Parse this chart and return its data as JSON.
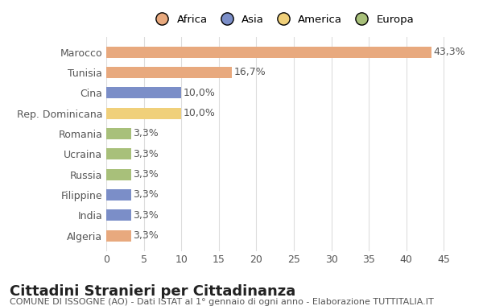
{
  "categories": [
    "Marocco",
    "Tunisia",
    "Cina",
    "Rep. Dominicana",
    "Romania",
    "Ucraina",
    "Russia",
    "Filippine",
    "India",
    "Algeria"
  ],
  "values": [
    43.3,
    16.7,
    10.0,
    10.0,
    3.3,
    3.3,
    3.3,
    3.3,
    3.3,
    3.3
  ],
  "labels": [
    "43,3%",
    "16,7%",
    "10,0%",
    "10,0%",
    "3,3%",
    "3,3%",
    "3,3%",
    "3,3%",
    "3,3%",
    "3,3%"
  ],
  "colors": [
    "#E8A97E",
    "#E8A97E",
    "#7B8EC8",
    "#F0D07A",
    "#A8C07A",
    "#A8C07A",
    "#A8C07A",
    "#7B8EC8",
    "#7B8EC8",
    "#E8A97E"
  ],
  "legend_labels": [
    "Africa",
    "Asia",
    "America",
    "Europa"
  ],
  "legend_colors": [
    "#E8A97E",
    "#7B8EC8",
    "#F0D07A",
    "#A8C07A"
  ],
  "title": "Cittadini Stranieri per Cittadinanza",
  "subtitle": "COMUNE DI ISSOGNE (AO) - Dati ISTAT al 1° gennaio di ogni anno - Elaborazione TUTTITALIA.IT",
  "xlim": [
    0,
    47
  ],
  "xticks": [
    0,
    5,
    10,
    15,
    20,
    25,
    30,
    35,
    40,
    45
  ],
  "background_color": "#ffffff",
  "grid_color": "#dddddd",
  "bar_height": 0.55,
  "label_fontsize": 9,
  "title_fontsize": 13,
  "subtitle_fontsize": 8,
  "tick_fontsize": 9
}
